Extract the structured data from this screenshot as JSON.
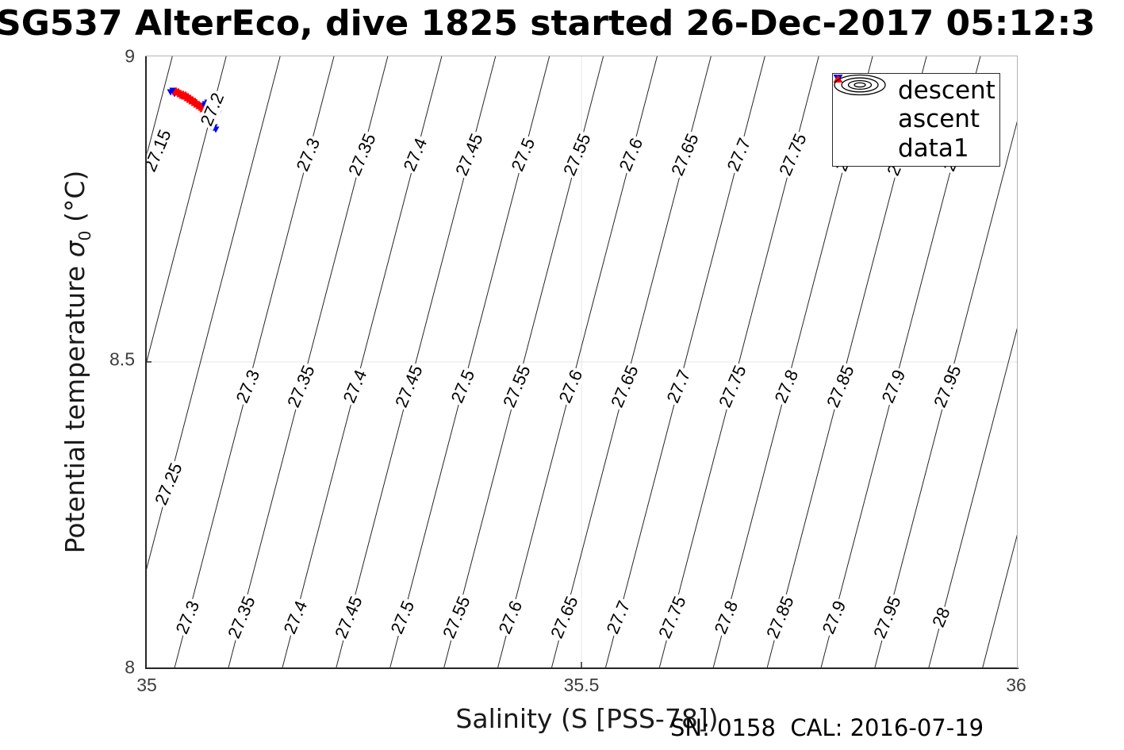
{
  "title": "SG537 AlterEco, dive 1825 started 26-Dec-2017 05:12:3",
  "footer": "SN: 0158  CAL: 2016-07-19",
  "chart_data": {
    "type": "scatter+contour",
    "title": "SG537 AlterEco, dive 1825 started 26-Dec-2017 05:12:3",
    "xlabel": "Salinity (S [PSS-78])",
    "ylabel": "Potential temperature σ0 (°C)",
    "ylabel_parts": {
      "pre": "Potential temperature ",
      "sigma": "σ",
      "sub": "0",
      "post": " (°C)"
    },
    "xlim": [
      35,
      36
    ],
    "ylim": [
      8,
      9
    ],
    "xtick_labels": [
      "35",
      "35.5",
      "36"
    ],
    "ytick_labels": [
      "8",
      "8.5",
      "9"
    ],
    "grid": {
      "x": [
        35.5
      ],
      "y": [
        8.5
      ]
    },
    "colors": {
      "descent": "#0000F5",
      "ascent": "#FA0000",
      "contour": "#262626",
      "grid": "#e6e6e6",
      "axis": "#262626"
    },
    "legend": [
      {
        "label": "descent",
        "marker": "triangle-down",
        "color": "#0000F5"
      },
      {
        "label": "ascent",
        "marker": "triangle-up",
        "color": "#FA0000"
      },
      {
        "label": "data1",
        "marker": "contour-rings",
        "color": "#000000"
      }
    ],
    "contours": {
      "interval": 0.05,
      "lines": [
        {
          "v": 27.15,
          "S_at_T8": 34.8484,
          "S_at_T9": 35.0314
        },
        {
          "v": 27.2,
          "S_at_T8": 34.9101,
          "S_at_T9": 35.0931
        },
        {
          "v": 27.25,
          "S_at_T8": 34.9719,
          "S_at_T9": 35.1549
        },
        {
          "v": 27.3,
          "S_at_T8": 35.0336,
          "S_at_T9": 35.2166
        },
        {
          "v": 27.35,
          "S_at_T8": 35.0953,
          "S_at_T9": 35.2783
        },
        {
          "v": 27.4,
          "S_at_T8": 35.1571,
          "S_at_T9": 35.3401
        },
        {
          "v": 27.45,
          "S_at_T8": 35.2188,
          "S_at_T9": 35.4018
        },
        {
          "v": 27.5,
          "S_at_T8": 35.2805,
          "S_at_T9": 35.4635
        },
        {
          "v": 27.55,
          "S_at_T8": 35.3423,
          "S_at_T9": 35.5253
        },
        {
          "v": 27.6,
          "S_at_T8": 35.404,
          "S_at_T9": 35.587
        },
        {
          "v": 27.65,
          "S_at_T8": 35.4657,
          "S_at_T9": 35.6487
        },
        {
          "v": 27.7,
          "S_at_T8": 35.5275,
          "S_at_T9": 35.7105
        },
        {
          "v": 27.75,
          "S_at_T8": 35.5892,
          "S_at_T9": 35.7722
        },
        {
          "v": 27.8,
          "S_at_T8": 35.6509,
          "S_at_T9": 35.8339
        },
        {
          "v": 27.85,
          "S_at_T8": 35.7127,
          "S_at_T9": 35.8957
        },
        {
          "v": 27.9,
          "S_at_T8": 35.7744,
          "S_at_T9": 35.9574
        },
        {
          "v": 27.95,
          "S_at_T8": 35.8361,
          "S_at_T9": 36.0191
        },
        {
          "v": 28,
          "S_at_T8": 35.8979,
          "S_at_T9": 36.0809
        },
        {
          "v": 28.05,
          "S_at_T8": 35.9596,
          "S_at_T9": 36.1426
        }
      ],
      "labels": [
        {
          "v": 27.15,
          "T": 8.845
        },
        {
          "v": 27.2,
          "T": 8.912
        },
        {
          "v": 27.3,
          "T": 8.838
        },
        {
          "v": 27.35,
          "T": 8.838
        },
        {
          "v": 27.4,
          "T": 8.838
        },
        {
          "v": 27.45,
          "T": 8.838
        },
        {
          "v": 27.5,
          "T": 8.838
        },
        {
          "v": 27.55,
          "T": 8.838
        },
        {
          "v": 27.6,
          "T": 8.838
        },
        {
          "v": 27.65,
          "T": 8.838
        },
        {
          "v": 27.7,
          "T": 8.838
        },
        {
          "v": 27.75,
          "T": 8.838
        },
        {
          "v": 27.8,
          "T": 8.838
        },
        {
          "v": 27.85,
          "T": 8.838
        },
        {
          "v": 27.9,
          "T": 8.838
        },
        {
          "v": 27.25,
          "T": 8.301
        },
        {
          "v": 27.3,
          "T": 8.46
        },
        {
          "v": 27.35,
          "T": 8.46
        },
        {
          "v": 27.4,
          "T": 8.46
        },
        {
          "v": 27.45,
          "T": 8.46
        },
        {
          "v": 27.5,
          "T": 8.46
        },
        {
          "v": 27.55,
          "T": 8.46
        },
        {
          "v": 27.6,
          "T": 8.46
        },
        {
          "v": 27.65,
          "T": 8.46
        },
        {
          "v": 27.7,
          "T": 8.46
        },
        {
          "v": 27.75,
          "T": 8.46
        },
        {
          "v": 27.8,
          "T": 8.46
        },
        {
          "v": 27.85,
          "T": 8.46
        },
        {
          "v": 27.9,
          "T": 8.46
        },
        {
          "v": 27.95,
          "T": 8.46
        },
        {
          "v": 27.3,
          "T": 8.083
        },
        {
          "v": 27.35,
          "T": 8.083
        },
        {
          "v": 27.4,
          "T": 8.083
        },
        {
          "v": 27.45,
          "T": 8.083
        },
        {
          "v": 27.5,
          "T": 8.083
        },
        {
          "v": 27.55,
          "T": 8.083
        },
        {
          "v": 27.6,
          "T": 8.083
        },
        {
          "v": 27.65,
          "T": 8.083
        },
        {
          "v": 27.7,
          "T": 8.083
        },
        {
          "v": 27.75,
          "T": 8.083
        },
        {
          "v": 27.8,
          "T": 8.083
        },
        {
          "v": 27.85,
          "T": 8.083
        },
        {
          "v": 27.9,
          "T": 8.083
        },
        {
          "v": 27.95,
          "T": 8.083
        },
        {
          "v": 28,
          "T": 8.083
        }
      ]
    },
    "series": [
      {
        "name": "descent",
        "marker": "triangle-down",
        "color": "#0000F5",
        "points": [
          [
            35.0291,
            8.9404
          ],
          [
            35.0318,
            8.943
          ],
          [
            35.0336,
            8.9378
          ],
          [
            35.0664,
            8.9184
          ],
          [
            35.0691,
            8.921
          ],
          [
            35.0718,
            8.9236
          ],
          [
            35.0745,
            8.9197
          ],
          [
            35.0773,
            8.9223
          ],
          [
            35.08,
            8.9197
          ],
          [
            35.0827,
            8.9171
          ],
          [
            35.0855,
            8.9145
          ],
          [
            35.0836,
            8.9106
          ],
          [
            35.08,
            8.908
          ],
          [
            35.0764,
            8.9067
          ],
          [
            35.0727,
            8.9041
          ],
          [
            35.0709,
            8.9003
          ],
          [
            35.0736,
            8.8977
          ],
          [
            35.0773,
            8.899
          ],
          [
            35.0809,
            8.9016
          ],
          [
            35.0836,
            8.9054
          ],
          [
            35.0718,
            8.8951
          ],
          [
            35.0745,
            8.8912
          ],
          [
            35.0773,
            8.8873
          ],
          [
            35.0791,
            8.8834
          ],
          [
            35.0809,
            8.8796
          ],
          [
            35.0782,
            8.8822
          ],
          [
            35.0755,
            8.8847
          ],
          [
            35.0727,
            8.8899
          ],
          [
            35.0682,
            8.9145
          ],
          [
            35.0645,
            8.9158
          ],
          [
            35.07,
            8.9054
          ],
          [
            35.0755,
            8.9132
          ],
          [
            35.0791,
            8.9158
          ],
          [
            35.0818,
            8.9106
          ]
        ]
      },
      {
        "name": "ascent",
        "marker": "triangle-up",
        "color": "#FA0000",
        "points": [
          [
            35.0345,
            8.9404
          ],
          [
            35.0373,
            8.9391
          ],
          [
            35.04,
            8.9365
          ],
          [
            35.0427,
            8.9339
          ],
          [
            35.0455,
            8.9327
          ],
          [
            35.0482,
            8.9301
          ],
          [
            35.0509,
            8.9275
          ],
          [
            35.0536,
            8.9249
          ],
          [
            35.0564,
            8.9223
          ],
          [
            35.0591,
            8.9197
          ],
          [
            35.0618,
            8.9171
          ],
          [
            35.0645,
            8.9145
          ],
          [
            35.0573,
            8.9262
          ],
          [
            35.0545,
            8.9288
          ],
          [
            35.0518,
            8.9314
          ],
          [
            35.0491,
            8.9339
          ],
          [
            35.0464,
            8.9365
          ],
          [
            35.0436,
            8.9378
          ],
          [
            35.0409,
            8.9391
          ],
          [
            35.0382,
            8.9417
          ],
          [
            35.0355,
            8.943
          ],
          [
            35.0591,
            8.9236
          ],
          [
            35.0618,
            8.921
          ],
          [
            35.0636,
            8.9184
          ],
          [
            35.0664,
            8.9119
          ],
          [
            35.0691,
            8.9093
          ],
          [
            35.0718,
            8.9067
          ],
          [
            35.0682,
            8.9003
          ],
          [
            35.0709,
            8.8977
          ],
          [
            35.0736,
            8.8951
          ],
          [
            35.0755,
            8.8925
          ],
          [
            35.0718,
            8.8912
          ],
          [
            35.0691,
            8.8951
          ],
          [
            35.0664,
            8.8977
          ],
          [
            35.07,
            8.9016
          ],
          [
            35.0727,
            8.899
          ],
          [
            35.0755,
            8.8964
          ],
          [
            35.0773,
            8.899
          ],
          [
            35.0736,
            8.9016
          ],
          [
            35.0709,
            8.9041
          ]
        ]
      }
    ]
  }
}
